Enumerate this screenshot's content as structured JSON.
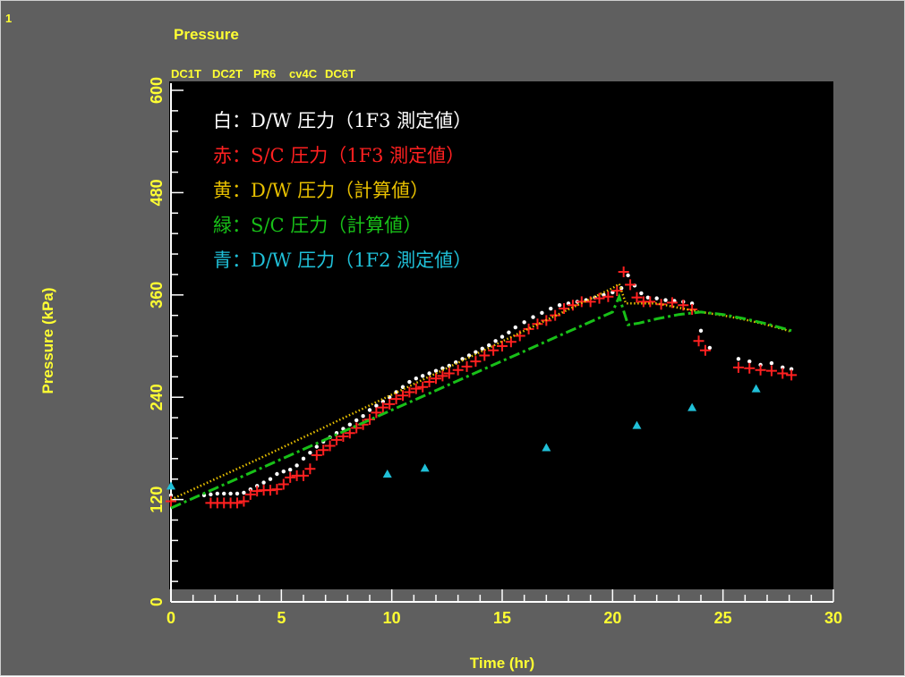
{
  "panel_number": "1",
  "chart_data": {
    "type": "line",
    "title": "Pressure",
    "xlabel": "Time (hr)",
    "ylabel": "Pressure (kPa)",
    "xlim": [
      0,
      30
    ],
    "ylim": [
      0,
      600
    ],
    "x_ticks": [
      "0",
      "5",
      "10",
      "15",
      "20",
      "25",
      "30"
    ],
    "y_ticks": [
      "0",
      "120",
      "240",
      "360",
      "480",
      "600"
    ],
    "legend": [
      "DC1T",
      "DC2T",
      "PR6",
      "cv4C",
      "DC6T"
    ],
    "annotations": [
      "白：D/W 圧力（1F3 測定値）",
      "赤：S/C 圧力（1F3 測定値）",
      "黄：D/W 圧力（計算値）",
      "緑：S/C 圧力（計算値）",
      "青：D/W 圧力（1F2 測定値）"
    ],
    "colors": {
      "background": "#5f5f5f",
      "plot_area": "#000000",
      "axis_text": "#ffff33",
      "DC1T": "#ffffff",
      "DC2T": "#ff2020",
      "PR6": "#e8c000",
      "cv4C": "#18c018",
      "DC6T": "#20c0d8"
    },
    "series": [
      {
        "name": "DC1T",
        "marker": "dot",
        "x": [
          0,
          1.5,
          1.8,
          2.1,
          2.4,
          2.7,
          3.0,
          3.3,
          3.6,
          3.9,
          4.2,
          4.5,
          4.8,
          5.1,
          5.4,
          5.7,
          6.0,
          6.3,
          6.6,
          6.9,
          7.2,
          7.5,
          7.8,
          8.1,
          8.4,
          8.7,
          9.0,
          9.3,
          9.6,
          9.9,
          10.2,
          10.5,
          10.8,
          11.1,
          11.4,
          11.7,
          12.0,
          12.3,
          12.6,
          12.9,
          13.2,
          13.5,
          13.8,
          14.1,
          14.4,
          14.7,
          15.0,
          15.3,
          15.6,
          16.0,
          16.4,
          16.8,
          17.2,
          17.6,
          18.0,
          18.4,
          18.8,
          19.2,
          19.6,
          20.0,
          20.4,
          20.7,
          21.0,
          21.3,
          21.6,
          22.0,
          22.4,
          22.8,
          23.2,
          23.6,
          24.0,
          24.4,
          25.7,
          26.2,
          26.7,
          27.2,
          27.7,
          28.1
        ],
        "y": [
          125,
          125,
          126,
          127,
          127,
          127,
          127,
          128,
          132,
          136,
          140,
          144,
          150,
          153,
          155,
          160,
          168,
          175,
          182,
          188,
          193,
          198,
          203,
          208,
          213,
          218,
          225,
          230,
          235,
          240,
          246,
          252,
          258,
          262,
          265,
          268,
          271,
          274,
          277,
          281,
          285,
          289,
          293,
          297,
          301,
          306,
          311,
          316,
          322,
          328,
          334,
          339,
          344,
          348,
          350,
          352,
          354,
          357,
          360,
          363,
          368,
          383,
          371,
          362,
          357,
          356,
          354,
          353,
          352,
          350,
          318,
          298,
          285,
          282,
          278,
          280,
          275,
          273
        ]
      },
      {
        "name": "DC2T",
        "marker": "plus",
        "x": [
          0,
          1.8,
          2.1,
          2.4,
          2.7,
          3.0,
          3.3,
          3.6,
          3.9,
          4.2,
          4.5,
          4.8,
          5.1,
          5.4,
          5.7,
          6.0,
          6.3,
          6.6,
          6.9,
          7.2,
          7.5,
          7.8,
          8.1,
          8.4,
          8.7,
          9.0,
          9.3,
          9.6,
          9.9,
          10.2,
          10.5,
          10.8,
          11.1,
          11.4,
          11.7,
          12.0,
          12.3,
          12.6,
          13.0,
          13.4,
          13.8,
          14.2,
          14.6,
          15.0,
          15.4,
          15.8,
          16.2,
          16.6,
          17.0,
          17.4,
          17.8,
          18.2,
          18.6,
          19.0,
          19.4,
          19.8,
          20.2,
          20.5,
          20.8,
          21.1,
          21.4,
          21.7,
          22.2,
          22.7,
          23.2,
          23.6,
          23.9,
          24.2,
          25.7,
          26.2,
          26.7,
          27.2,
          27.7,
          28.1
        ],
        "y": [
          118,
          116,
          116,
          116,
          116,
          116,
          118,
          126,
          130,
          131,
          131,
          132,
          138,
          146,
          148,
          148,
          156,
          172,
          178,
          183,
          190,
          194,
          198,
          204,
          208,
          214,
          222,
          228,
          232,
          238,
          242,
          246,
          250,
          252,
          258,
          262,
          265,
          268,
          272,
          276,
          282,
          289,
          295,
          300,
          305,
          312,
          320,
          326,
          330,
          336,
          344,
          348,
          352,
          352,
          356,
          358,
          365,
          387,
          372,
          357,
          352,
          352,
          349,
          351,
          348,
          343,
          306,
          295,
          275,
          274,
          272,
          271,
          268,
          266
        ]
      },
      {
        "name": "PR6",
        "style": "dotted",
        "x": [
          0,
          2,
          4,
          6,
          8,
          10,
          12,
          14,
          16,
          18,
          20,
          20.3,
          20.6,
          21.0,
          22.0,
          23.0,
          24.0,
          25.0,
          26.0,
          27.0,
          28.1
        ],
        "y": [
          120,
          144,
          168,
          193,
          218,
          243,
          268,
          293,
          318,
          343,
          368,
          373,
          350,
          350,
          350,
          345,
          340,
          336,
          331,
          325,
          317
        ]
      },
      {
        "name": "cv4C",
        "style": "dash-dot",
        "x": [
          0,
          2,
          4,
          6,
          8,
          10,
          12,
          14,
          16,
          18,
          20,
          20.3,
          20.7,
          21.2,
          22.0,
          23.0,
          24.0,
          25.0,
          26.0,
          27.0,
          28.1
        ],
        "y": [
          110,
          133,
          156,
          179,
          202,
          225,
          248,
          271,
          294,
          317,
          340,
          358,
          325,
          327,
          332,
          337,
          340,
          337,
          332,
          326,
          318
        ]
      },
      {
        "name": "DC6T",
        "marker": "triangle",
        "x": [
          0,
          9.8,
          11.5,
          17.0,
          21.1,
          23.6,
          26.5
        ],
        "y": [
          136,
          150,
          157,
          181,
          207,
          228,
          250
        ]
      }
    ]
  }
}
